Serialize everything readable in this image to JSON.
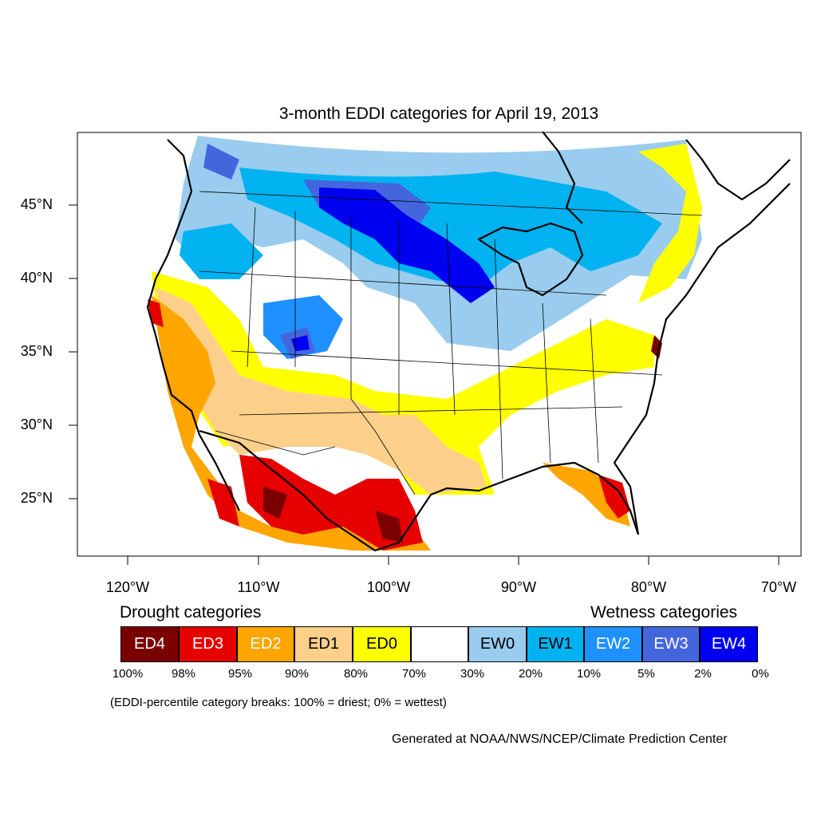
{
  "title": "3-month EDDI categories for April 19, 2013",
  "lat_labels": [
    "45°N",
    "40°N",
    "35°N",
    "30°N",
    "25°N"
  ],
  "lon_labels": [
    "120°W",
    "110°W",
    "100°W",
    "90°W",
    "80°W",
    "70°W"
  ],
  "drought_heading": "Drought categories",
  "wetness_heading": "Wetness categories",
  "legend": [
    {
      "label": "ED4",
      "color": "#7a0000",
      "text_color": "#ffffff"
    },
    {
      "label": "ED3",
      "color": "#e60000",
      "text_color": "#ffffff"
    },
    {
      "label": "ED2",
      "color": "#ffa500",
      "text_color": "#ffffff"
    },
    {
      "label": "ED1",
      "color": "#fcd08a",
      "text_color": "#000000"
    },
    {
      "label": "ED0",
      "color": "#ffff00",
      "text_color": "#000000"
    },
    {
      "label": "",
      "color": "#ffffff",
      "text_color": "#000000"
    },
    {
      "label": "EW0",
      "color": "#99ccee",
      "text_color": "#000000"
    },
    {
      "label": "EW1",
      "color": "#00b2f0",
      "text_color": "#000000"
    },
    {
      "label": "EW2",
      "color": "#1e90ff",
      "text_color": "#ffffff"
    },
    {
      "label": "EW3",
      "color": "#4466dd",
      "text_color": "#ffffff"
    },
    {
      "label": "EW4",
      "color": "#0000f0",
      "text_color": "#ffffff"
    }
  ],
  "breaks": [
    "100%",
    "98%",
    "95%",
    "90%",
    "80%",
    "70%",
    "30%",
    "20%",
    "10%",
    "5%",
    "2%",
    "0%"
  ],
  "note": "(EDDI-percentile category breaks: 100% = driest; 0% = wettest)",
  "credit": "Generated at NOAA/NWS/NCEP/Climate Prediction Center"
}
